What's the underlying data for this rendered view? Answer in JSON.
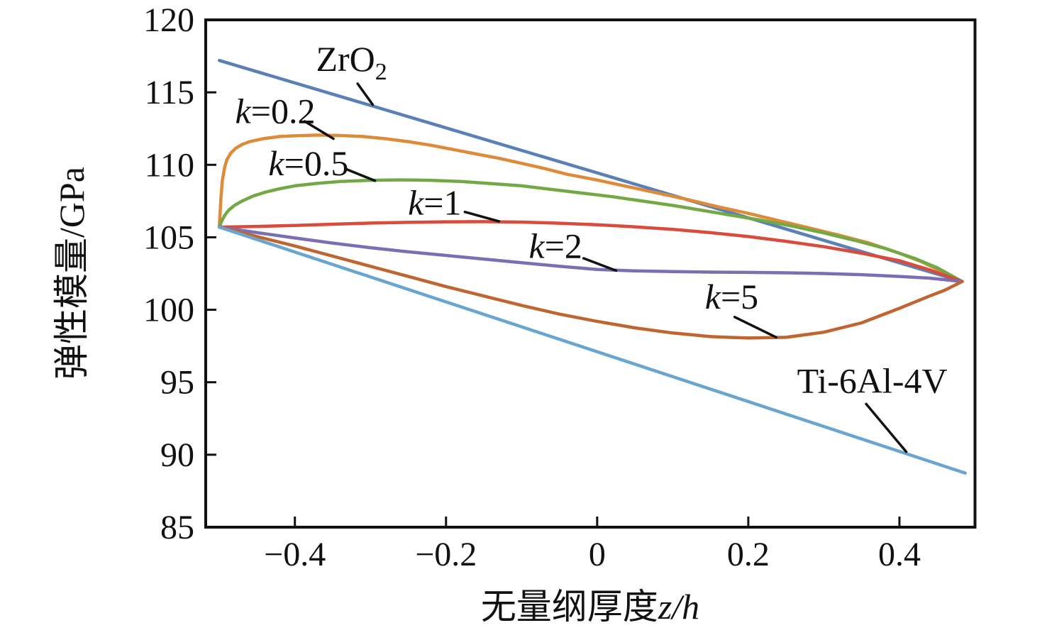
{
  "figure": {
    "background": "#ffffff",
    "axis_color": "#111111"
  },
  "chart_data": {
    "type": "line",
    "title": "",
    "xlabel": {
      "prefix": "无量纲厚度",
      "italic": "z/h"
    },
    "ylabel": "弹性模量/GPa",
    "xlim": [
      -0.518,
      0.5
    ],
    "ylim": [
      85,
      120
    ],
    "grid": false,
    "legend_position": "inline-annotations",
    "xticks": [
      {
        "v": -0.4,
        "label": "−0.4"
      },
      {
        "v": -0.2,
        "label": "−0.2"
      },
      {
        "v": 0,
        "label": "0"
      },
      {
        "v": 0.2,
        "label": "0.2"
      },
      {
        "v": 0.4,
        "label": "0.4"
      }
    ],
    "yticks": [
      {
        "v": 85,
        "label": "85"
      },
      {
        "v": 90,
        "label": "90"
      },
      {
        "v": 95,
        "label": "95"
      },
      {
        "v": 100,
        "label": "100"
      },
      {
        "v": 105,
        "label": "105"
      },
      {
        "v": 110,
        "label": "110"
      },
      {
        "v": 115,
        "label": "115"
      },
      {
        "v": 120,
        "label": "120"
      }
    ],
    "series": [
      {
        "id": "zro2",
        "name": "ZrO2",
        "color": "#5b7fb7",
        "points": [
          [
            -0.5,
            117.2
          ],
          [
            0.483,
            101.95
          ]
        ]
      },
      {
        "id": "k0_2",
        "name": "k=0.2",
        "color": "#dd8a3a",
        "points": [
          [
            -0.5,
            105.7
          ],
          [
            -0.498,
            107.6
          ],
          [
            -0.496,
            108.9
          ],
          [
            -0.493,
            109.8
          ],
          [
            -0.49,
            110.35
          ],
          [
            -0.485,
            110.8
          ],
          [
            -0.478,
            111.15
          ],
          [
            -0.47,
            111.4
          ],
          [
            -0.46,
            111.6
          ],
          [
            -0.44,
            111.82
          ],
          [
            -0.42,
            111.95
          ],
          [
            -0.4,
            112.0
          ],
          [
            -0.37,
            112.05
          ],
          [
            -0.34,
            112.02
          ],
          [
            -0.31,
            111.95
          ],
          [
            -0.28,
            111.8
          ],
          [
            -0.25,
            111.6
          ],
          [
            -0.22,
            111.35
          ],
          [
            -0.19,
            111.05
          ],
          [
            -0.16,
            110.75
          ],
          [
            -0.13,
            110.45
          ],
          [
            -0.1,
            110.1
          ],
          [
            -0.07,
            109.75
          ],
          [
            -0.04,
            109.35
          ],
          [
            0,
            108.95
          ],
          [
            0.04,
            108.5
          ],
          [
            0.08,
            108.05
          ],
          [
            0.12,
            107.6
          ],
          [
            0.16,
            107.1
          ],
          [
            0.2,
            106.65
          ],
          [
            0.24,
            106.15
          ],
          [
            0.28,
            105.65
          ],
          [
            0.32,
            105.15
          ],
          [
            0.36,
            104.6
          ],
          [
            0.4,
            103.9
          ],
          [
            0.43,
            103.3
          ],
          [
            0.46,
            102.55
          ],
          [
            0.483,
            101.95
          ]
        ]
      },
      {
        "id": "k0_5",
        "name": "k=0.5",
        "color": "#72a944",
        "points": [
          [
            -0.5,
            105.7
          ],
          [
            -0.497,
            106.1
          ],
          [
            -0.493,
            106.5
          ],
          [
            -0.488,
            106.85
          ],
          [
            -0.48,
            107.2
          ],
          [
            -0.47,
            107.5
          ],
          [
            -0.455,
            107.85
          ],
          [
            -0.44,
            108.1
          ],
          [
            -0.42,
            108.35
          ],
          [
            -0.4,
            108.55
          ],
          [
            -0.37,
            108.72
          ],
          [
            -0.34,
            108.85
          ],
          [
            -0.3,
            108.93
          ],
          [
            -0.26,
            108.96
          ],
          [
            -0.22,
            108.93
          ],
          [
            -0.18,
            108.85
          ],
          [
            -0.14,
            108.7
          ],
          [
            -0.1,
            108.55
          ],
          [
            -0.06,
            108.3
          ],
          [
            -0.02,
            108.05
          ],
          [
            0.02,
            107.8
          ],
          [
            0.06,
            107.5
          ],
          [
            0.1,
            107.2
          ],
          [
            0.14,
            106.85
          ],
          [
            0.18,
            106.5
          ],
          [
            0.22,
            106.15
          ],
          [
            0.26,
            105.75
          ],
          [
            0.3,
            105.3
          ],
          [
            0.34,
            104.8
          ],
          [
            0.38,
            104.25
          ],
          [
            0.42,
            103.55
          ],
          [
            0.45,
            102.9
          ],
          [
            0.483,
            101.95
          ]
        ]
      },
      {
        "id": "k1",
        "name": "k=1",
        "color": "#d94b3c",
        "points": [
          [
            -0.5,
            105.7
          ],
          [
            -0.45,
            105.75
          ],
          [
            -0.4,
            105.82
          ],
          [
            -0.35,
            105.9
          ],
          [
            -0.3,
            105.98
          ],
          [
            -0.25,
            106.03
          ],
          [
            -0.2,
            106.07
          ],
          [
            -0.15,
            106.08
          ],
          [
            -0.1,
            106.05
          ],
          [
            -0.05,
            105.97
          ],
          [
            0,
            105.87
          ],
          [
            0.05,
            105.72
          ],
          [
            0.1,
            105.55
          ],
          [
            0.15,
            105.32
          ],
          [
            0.2,
            105.05
          ],
          [
            0.25,
            104.72
          ],
          [
            0.3,
            104.35
          ],
          [
            0.35,
            103.9
          ],
          [
            0.4,
            103.38
          ],
          [
            0.44,
            102.75
          ],
          [
            0.483,
            101.95
          ]
        ]
      },
      {
        "id": "k2",
        "name": "k=2",
        "color": "#7d6eb4",
        "points": [
          [
            -0.5,
            105.7
          ],
          [
            -0.45,
            105.32
          ],
          [
            -0.4,
            104.95
          ],
          [
            -0.35,
            104.6
          ],
          [
            -0.3,
            104.28
          ],
          [
            -0.25,
            104.0
          ],
          [
            -0.2,
            103.75
          ],
          [
            -0.15,
            103.5
          ],
          [
            -0.1,
            103.25
          ],
          [
            -0.05,
            103.0
          ],
          [
            0,
            102.78
          ],
          [
            0.05,
            102.68
          ],
          [
            0.1,
            102.63
          ],
          [
            0.15,
            102.6
          ],
          [
            0.2,
            102.58
          ],
          [
            0.25,
            102.55
          ],
          [
            0.3,
            102.5
          ],
          [
            0.35,
            102.42
          ],
          [
            0.4,
            102.3
          ],
          [
            0.44,
            102.18
          ],
          [
            0.483,
            101.95
          ]
        ]
      },
      {
        "id": "k5",
        "name": "k=5",
        "color": "#bf6630",
        "points": [
          [
            -0.5,
            105.7
          ],
          [
            -0.45,
            105.05
          ],
          [
            -0.4,
            104.4
          ],
          [
            -0.35,
            103.7
          ],
          [
            -0.3,
            103.0
          ],
          [
            -0.25,
            102.3
          ],
          [
            -0.2,
            101.6
          ],
          [
            -0.15,
            100.95
          ],
          [
            -0.1,
            100.3
          ],
          [
            -0.05,
            99.7
          ],
          [
            0,
            99.2
          ],
          [
            0.05,
            98.75
          ],
          [
            0.1,
            98.4
          ],
          [
            0.15,
            98.15
          ],
          [
            0.2,
            98.05
          ],
          [
            0.25,
            98.1
          ],
          [
            0.3,
            98.45
          ],
          [
            0.35,
            99.1
          ],
          [
            0.4,
            100.1
          ],
          [
            0.44,
            100.95
          ],
          [
            0.46,
            101.35
          ],
          [
            0.483,
            101.95
          ]
        ]
      },
      {
        "id": "ti6al4v",
        "name": "Ti-6Al-4V",
        "color": "#69a5cf",
        "points": [
          [
            -0.5,
            105.7
          ],
          [
            0.487,
            88.73
          ]
        ]
      }
    ],
    "annotations": [
      {
        "id": "zro2",
        "style": "chem",
        "base": "ZrO",
        "sub": "2",
        "text": "ZrO2",
        "x": -0.325,
        "y": 117.3,
        "leader": [
          [
            -0.317,
            115.6
          ],
          [
            -0.297,
            114.15
          ]
        ]
      },
      {
        "id": "k0_2",
        "style": "k-label",
        "text": "k=0.2",
        "x": -0.426,
        "y": 113.7,
        "leader": [
          [
            -0.387,
            113.0
          ],
          [
            -0.349,
            111.8
          ]
        ]
      },
      {
        "id": "k0_5",
        "style": "k-label",
        "text": "k=0.5",
        "x": -0.382,
        "y": 110.1,
        "leader": [
          [
            -0.332,
            109.7
          ],
          [
            -0.294,
            108.9
          ]
        ]
      },
      {
        "id": "k1",
        "style": "k-label",
        "text": "k=1",
        "x": -0.215,
        "y": 107.4,
        "leader": [
          [
            -0.175,
            106.75
          ],
          [
            -0.13,
            106.1
          ]
        ]
      },
      {
        "id": "k2",
        "style": "k-label",
        "text": "k=2",
        "x": -0.055,
        "y": 104.4,
        "leader": [
          [
            -0.018,
            103.55
          ],
          [
            0.025,
            102.7
          ]
        ]
      },
      {
        "id": "k5",
        "style": "k-label",
        "text": "k=5",
        "x": 0.178,
        "y": 100.9,
        "leader": [
          [
            0.182,
            99.5
          ],
          [
            0.237,
            98.1
          ]
        ]
      },
      {
        "id": "ti6al4v",
        "style": "plain",
        "text": "Ti-6Al-4V",
        "x": 0.364,
        "y": 95.1,
        "leader": [
          [
            0.356,
            93.5
          ],
          [
            0.409,
            90.2
          ]
        ]
      }
    ]
  }
}
